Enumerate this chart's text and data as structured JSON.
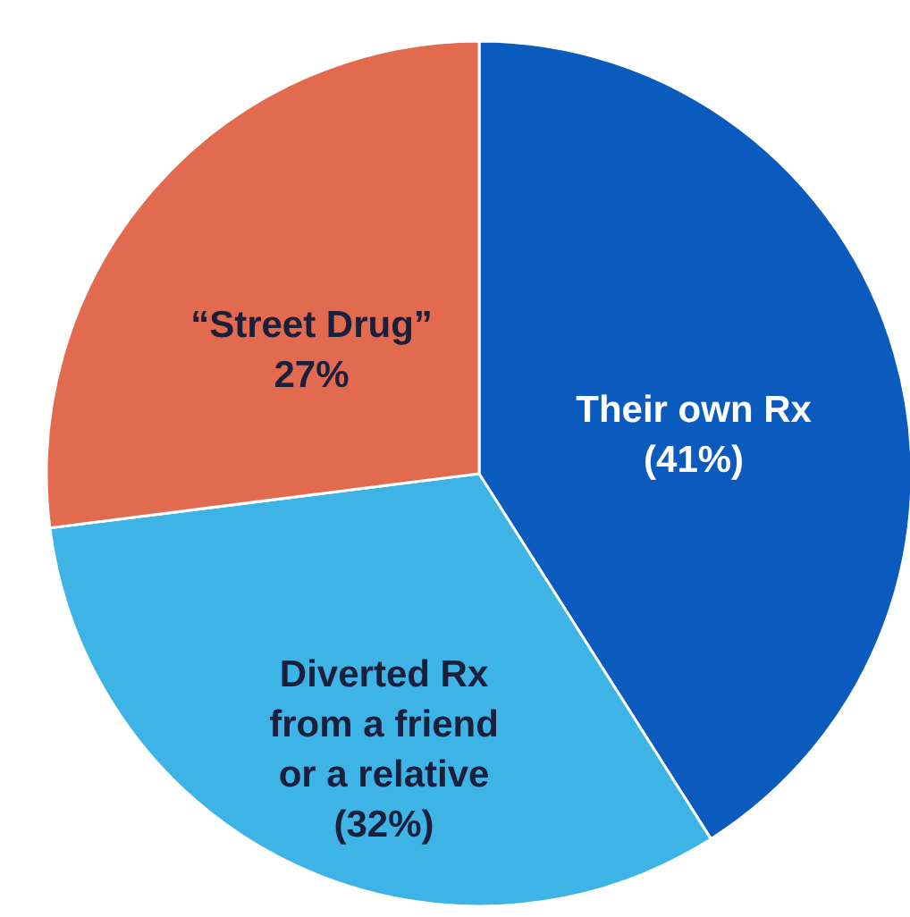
{
  "chart_data": {
    "type": "pie",
    "categories": [
      "Their own Rx",
      "Diverted Rx from a friend or a relative",
      "“Street Drug”"
    ],
    "values": [
      41,
      32,
      27
    ],
    "colors": [
      "#0a5bbd",
      "#3eb3e6",
      "#e26a4f"
    ],
    "value_labels": [
      "(41%)",
      "(32%)",
      "27%"
    ]
  }
}
